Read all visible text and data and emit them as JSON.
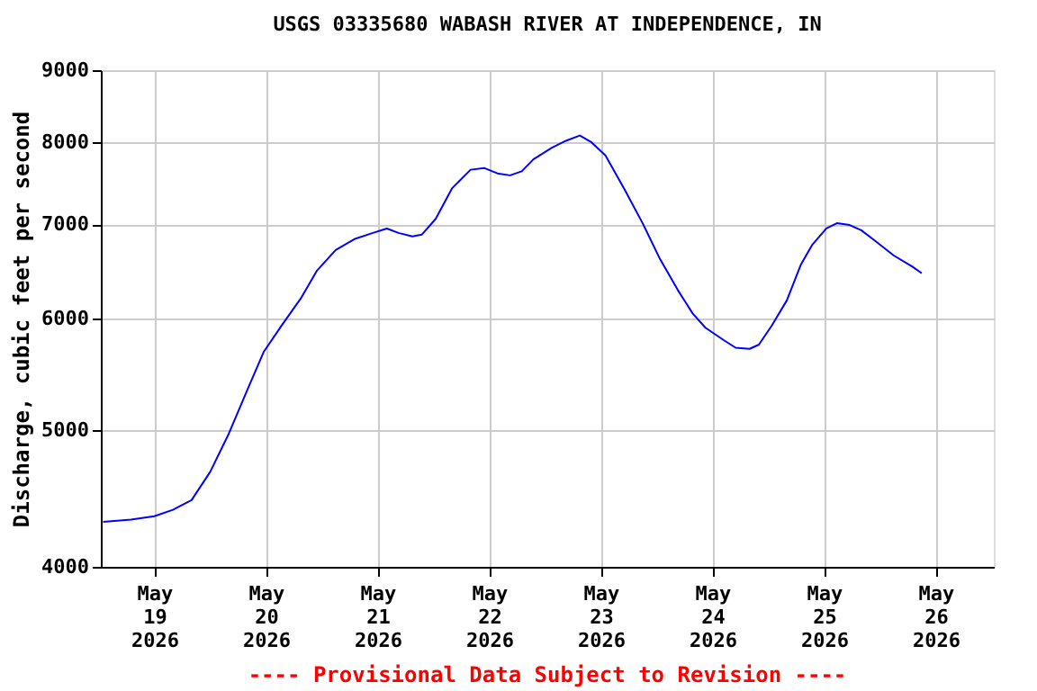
{
  "chart_data": {
    "type": "line",
    "title": "USGS 03335680 WABASH RIVER AT INDEPENDENCE, IN",
    "ylabel": "Discharge, cubic feet per second",
    "log": "y",
    "grid": true,
    "marker": "none",
    "line_style": "solid",
    "xlim": [
      "2026-05-18T12:30",
      "2026-05-26T12:30"
    ],
    "xticks": [
      {
        "value": "2026-05-19T00:00",
        "label": "May\n19\n2026"
      },
      {
        "value": "2026-05-20T00:00",
        "label": "May\n20\n2026"
      },
      {
        "value": "2026-05-21T00:00",
        "label": "May\n21\n2026"
      },
      {
        "value": "2026-05-22T00:00",
        "label": "May\n22\n2026"
      },
      {
        "value": "2026-05-23T00:00",
        "label": "May\n23\n2026"
      },
      {
        "value": "2026-05-24T00:00",
        "label": "May\n24\n2026"
      },
      {
        "value": "2026-05-25T00:00",
        "label": "May\n25\n2026"
      },
      {
        "value": "2026-05-26T00:00",
        "label": "May\n26\n2026"
      }
    ],
    "ylim": [
      4000,
      9000
    ],
    "yticks": [
      4000,
      5000,
      6000,
      7000,
      8000,
      9000
    ],
    "annotations": [
      "---- Provisional Data Subject to Revision ----"
    ],
    "x": [
      "2026-05-18T13:00",
      "2026-05-18T19:00",
      "2026-05-19T00:00",
      "2026-05-19T04:00",
      "2026-05-19T08:00",
      "2026-05-19T12:00",
      "2026-05-19T16:00",
      "2026-05-19T20:00",
      "2026-05-19T23:30",
      "2026-05-20T03:30",
      "2026-05-20T07:30",
      "2026-05-20T11:00",
      "2026-05-20T15:00",
      "2026-05-20T19:00",
      "2026-05-20T23:00",
      "2026-05-21T02:00",
      "2026-05-21T04:30",
      "2026-05-21T07:30",
      "2026-05-21T09:30",
      "2026-05-21T12:30",
      "2026-05-21T16:00",
      "2026-05-21T20:00",
      "2026-05-21T23:00",
      "2026-05-22T02:00",
      "2026-05-22T04:30",
      "2026-05-22T07:00",
      "2026-05-22T09:30",
      "2026-05-22T13:30",
      "2026-05-22T16:30",
      "2026-05-22T19:30",
      "2026-05-22T22:00",
      "2026-05-23T01:00",
      "2026-05-23T05:00",
      "2026-05-23T09:00",
      "2026-05-23T12:45",
      "2026-05-23T16:30",
      "2026-05-23T19:45",
      "2026-05-23T22:30",
      "2026-05-24T02:30",
      "2026-05-24T05:00",
      "2026-05-24T08:00",
      "2026-05-24T10:00",
      "2026-05-24T12:45",
      "2026-05-24T16:00",
      "2026-05-24T19:00",
      "2026-05-24T21:30",
      "2026-05-25T00:30",
      "2026-05-25T02:45",
      "2026-05-25T05:30",
      "2026-05-25T08:00",
      "2026-05-25T11:00",
      "2026-05-25T15:00",
      "2026-05-25T19:00",
      "2026-05-25T21:00"
    ],
    "series": [
      {
        "color": "#0000ff",
        "values": [
          4305,
          4320,
          4345,
          4390,
          4460,
          4670,
          4970,
          5340,
          5680,
          5940,
          6200,
          6490,
          6710,
          6830,
          6900,
          6950,
          6900,
          6860,
          6880,
          7060,
          7420,
          7650,
          7670,
          7600,
          7580,
          7630,
          7780,
          7930,
          8020,
          8090,
          8000,
          7830,
          7420,
          7010,
          6610,
          6290,
          6050,
          5910,
          5790,
          5720,
          5710,
          5750,
          5930,
          6180,
          6550,
          6770,
          6950,
          7010,
          6990,
          6930,
          6810,
          6650,
          6530,
          6460
        ]
      }
    ]
  }
}
